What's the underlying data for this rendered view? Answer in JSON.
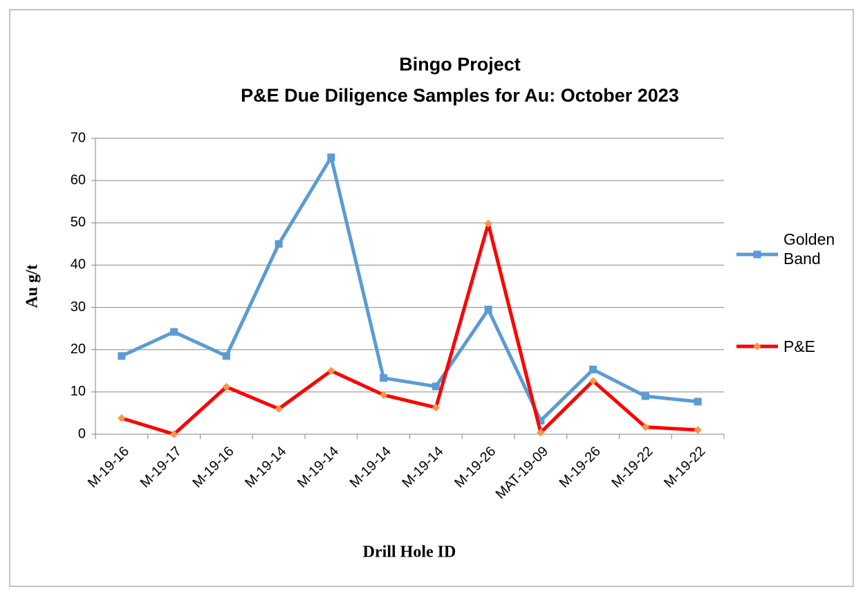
{
  "chart_data": {
    "type": "line",
    "title": "Bingo Project",
    "subtitle": "P&E Due Diligence Samples for Au: October 2023",
    "x_label": "Drill  Hole ID",
    "y_label": "Au g/t",
    "categories": [
      "M-19-16",
      "M-19-17",
      "M-19-16",
      "M-19-14",
      "M-19-14",
      "M-19-14",
      "M-19-14",
      "M-19-26",
      "MAT-19-09",
      "M-19-26",
      "M-19-22",
      "M-19-22"
    ],
    "series": [
      {
        "name": "Golden Band",
        "color": "#5b9bd5",
        "marker": "square",
        "values": [
          18.5,
          24.2,
          18.5,
          45,
          65.5,
          13.3,
          11.3,
          29.5,
          3.2,
          15.3,
          9,
          7.7
        ]
      },
      {
        "name": "P&E",
        "color": "#ff0000",
        "marker": "diamond",
        "marker_color": "#f79646",
        "values": [
          3.8,
          0,
          11.2,
          6,
          15,
          9.3,
          6.3,
          49.8,
          0.4,
          12.6,
          1.7,
          1
        ]
      }
    ],
    "ylim": [
      0,
      70
    ],
    "yticks": [
      0,
      10,
      20,
      30,
      40,
      50,
      60,
      70
    ],
    "grid": true,
    "legend": "right"
  }
}
